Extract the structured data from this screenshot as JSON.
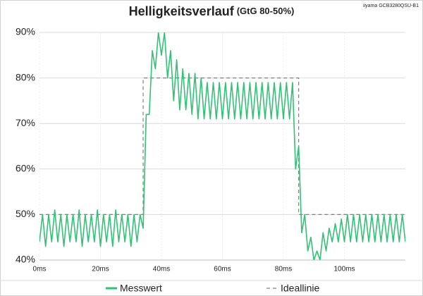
{
  "chart_data": {
    "type": "line",
    "title": "Helligkeitsverlauf",
    "subtitle": "(GtG 80-50%)",
    "annotation": "iiyama GCB3280QSU-B1",
    "xlim": [
      0,
      120
    ],
    "xticks": [
      {
        "value": 0,
        "label": "0ms"
      },
      {
        "value": 20,
        "label": "20ms"
      },
      {
        "value": 40,
        "label": "40ms"
      },
      {
        "value": 60,
        "label": "60ms"
      },
      {
        "value": 80,
        "label": "80ms"
      },
      {
        "value": 100,
        "label": "100ms"
      }
    ],
    "ylim": [
      40,
      90
    ],
    "yticks": [
      {
        "value": 40,
        "label": "40%"
      },
      {
        "value": 50,
        "label": "50%"
      },
      {
        "value": 60,
        "label": "60%"
      },
      {
        "value": 70,
        "label": "70%"
      },
      {
        "value": 80,
        "label": "80%"
      },
      {
        "value": 90,
        "label": "90%"
      }
    ],
    "grid": true,
    "legend": "bottom",
    "series": [
      {
        "name": "Messwert",
        "color": "#33c176",
        "dashed": false,
        "x": [
          0,
          1,
          2,
          3,
          4,
          5,
          6,
          7,
          8,
          9,
          10,
          11,
          12,
          13,
          14,
          15,
          16,
          17,
          18,
          19,
          20,
          21,
          22,
          23,
          24,
          25,
          26,
          27,
          28,
          29,
          30,
          31,
          32,
          33,
          34,
          35,
          36,
          37,
          38,
          39,
          40,
          41,
          42,
          43,
          44,
          45,
          46,
          47,
          48,
          49,
          50,
          51,
          52,
          53,
          54,
          55,
          56,
          57,
          58,
          59,
          60,
          61,
          62,
          63,
          64,
          65,
          66,
          67,
          68,
          69,
          70,
          71,
          72,
          73,
          74,
          75,
          76,
          77,
          78,
          79,
          80,
          81,
          82,
          83,
          84,
          85,
          86,
          87,
          88,
          89,
          90,
          91,
          92,
          93,
          94,
          95,
          96,
          97,
          98,
          99,
          100,
          101,
          102,
          103,
          104,
          105,
          106,
          107,
          108,
          109,
          110,
          111,
          112,
          113,
          114,
          115,
          116,
          117,
          118,
          119,
          120
        ],
        "values": [
          44,
          50,
          43,
          50,
          44,
          51,
          44,
          50,
          43,
          50,
          44,
          50,
          44,
          51,
          43,
          50,
          44,
          50,
          44,
          51,
          43,
          50,
          44,
          50,
          43,
          51,
          44,
          50,
          44,
          50,
          43,
          50,
          44,
          50,
          47,
          72,
          72,
          86,
          82,
          90,
          85,
          90,
          80,
          86,
          75,
          84,
          73,
          82,
          73,
          81,
          72,
          81,
          71,
          80,
          71,
          79,
          71,
          79,
          71,
          79,
          71,
          79,
          71,
          79,
          71,
          79,
          71,
          79,
          71,
          79,
          71,
          79,
          71,
          79,
          71,
          79,
          71,
          79,
          71,
          79,
          71,
          79,
          71,
          79,
          60,
          65,
          46,
          50,
          42,
          45,
          40,
          42,
          40,
          46,
          42,
          47,
          44,
          48,
          44,
          49,
          44,
          50,
          44,
          50,
          44,
          50,
          44,
          50,
          44,
          50,
          44,
          50,
          44,
          50,
          44,
          50,
          44,
          50,
          44,
          50,
          44
        ]
      },
      {
        "name": "Ideallinie",
        "color": "#7f7f7f",
        "dashed": true,
        "x": [
          0,
          34,
          34,
          85,
          85,
          120
        ],
        "values": [
          50,
          50,
          80,
          80,
          50,
          50
        ]
      }
    ]
  }
}
